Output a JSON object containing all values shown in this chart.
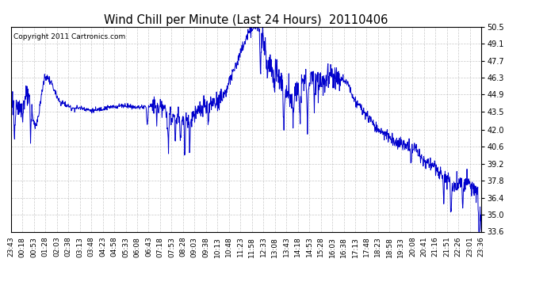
{
  "title": "Wind Chill per Minute (Last 24 Hours)  20110406",
  "copyright_text": "Copyright 2011 Cartronics.com",
  "line_color": "#0000cc",
  "background_color": "#ffffff",
  "grid_color": "#bbbbbb",
  "y_ticks": [
    33.6,
    35.0,
    36.4,
    37.8,
    39.2,
    40.6,
    42.0,
    43.5,
    44.9,
    46.3,
    47.7,
    49.1,
    50.5
  ],
  "ylim": [
    33.6,
    50.5
  ],
  "x_labels": [
    "23:43",
    "00:18",
    "00:53",
    "01:28",
    "02:03",
    "02:38",
    "03:13",
    "03:48",
    "04:23",
    "04:58",
    "05:33",
    "06:08",
    "06:43",
    "07:18",
    "07:53",
    "08:28",
    "09:03",
    "09:38",
    "10:13",
    "10:48",
    "11:23",
    "11:58",
    "12:33",
    "13:08",
    "13:43",
    "14:18",
    "14:53",
    "15:28",
    "16:03",
    "16:38",
    "17:13",
    "17:48",
    "18:23",
    "18:58",
    "19:33",
    "20:08",
    "20:41",
    "21:16",
    "21:51",
    "22:26",
    "23:01",
    "23:36"
  ],
  "num_points": 1440,
  "figsize": [
    6.9,
    3.75
  ],
  "dpi": 100
}
